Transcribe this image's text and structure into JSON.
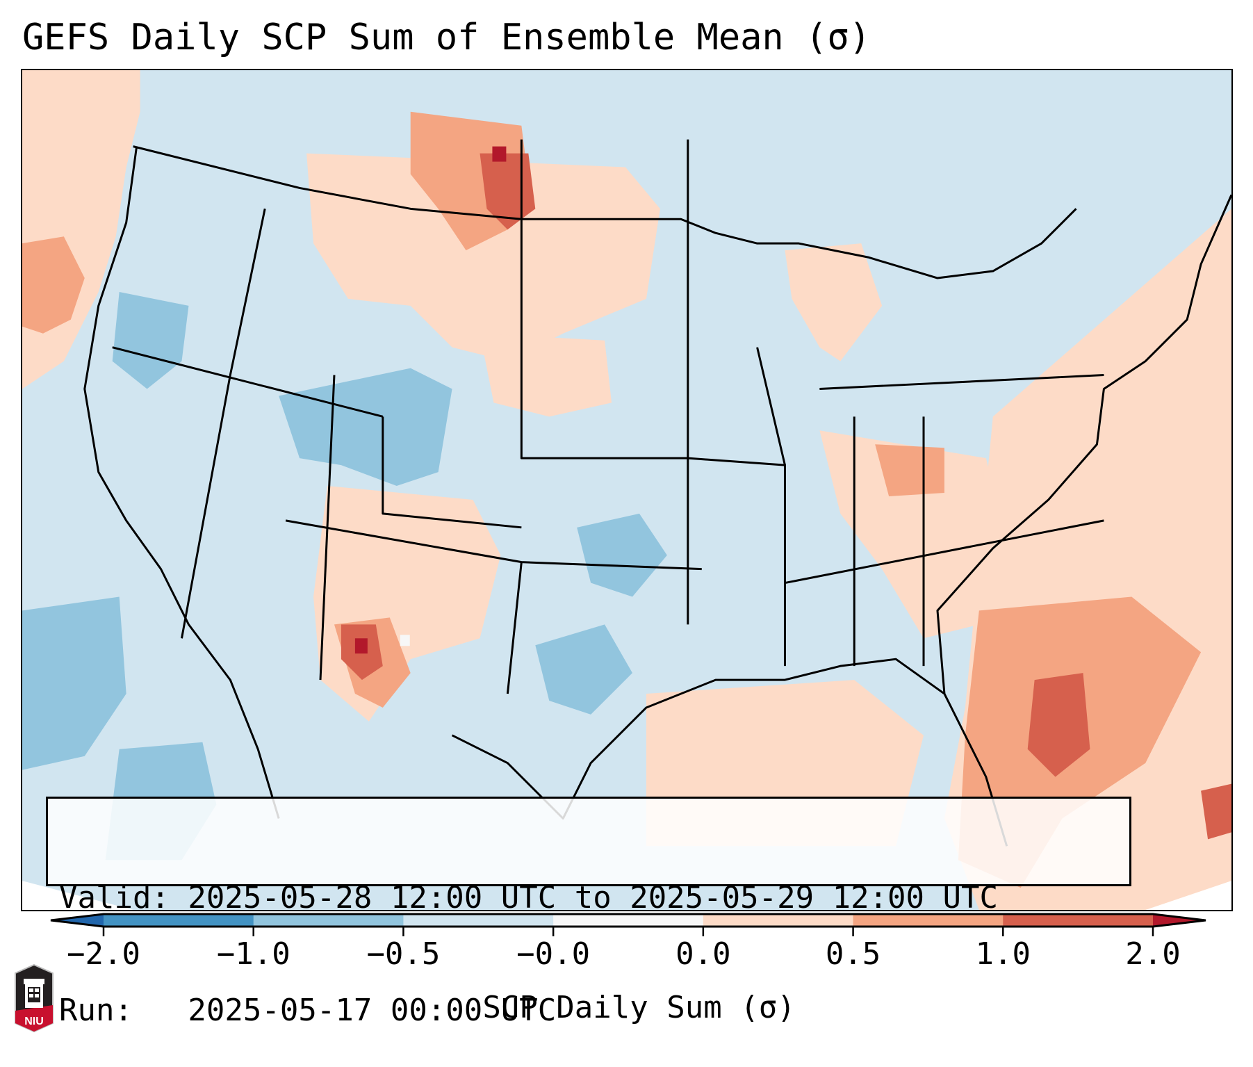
{
  "title": "GEFS Daily SCP Sum of Ensemble Mean (σ)",
  "info": {
    "valid_line": "Valid: 2025-05-28 12:00 UTC to 2025-05-29 12:00 UTC",
    "run_line": "Run:   2025-05-17 00:00 UTC"
  },
  "colorbar": {
    "label": "SCP Daily Sum (σ)",
    "ticks": [
      "−2.0",
      "−1.0",
      "−0.5",
      "−0.0",
      "0.0",
      "0.5",
      "1.0",
      "2.0"
    ],
    "bins": [
      {
        "range": "< -2.0",
        "color": "#2166ac",
        "kind": "extend-low"
      },
      {
        "range": "-2.0 to -1.0",
        "color": "#4393c3"
      },
      {
        "range": "-1.0 to -0.5",
        "color": "#92c5de"
      },
      {
        "range": "-0.5 to -0.0",
        "color": "#d1e5f0"
      },
      {
        "range": "-0.0 to 0.0",
        "color": "#f7f7f7"
      },
      {
        "range": "0.0 to 0.5",
        "color": "#fddbc7"
      },
      {
        "range": "0.5 to 1.0",
        "color": "#f4a582"
      },
      {
        "range": "1.0 to 2.0",
        "color": "#d6604d"
      },
      {
        "range": "> 2.0",
        "color": "#b2182b",
        "kind": "extend-high"
      }
    ]
  },
  "map": {
    "region": "Contiguous United States",
    "field": "SCP daily sum standardized anomaly",
    "highlights": [
      {
        "area": "Eastern Montana / western North Dakota",
        "category": "1.0 to >2.0"
      },
      {
        "area": "Southern New Mexico / Texas border",
        "category": "1.0 to >2.0"
      },
      {
        "area": "Florida and western Atlantic",
        "category": "0.5 to 2.0"
      },
      {
        "area": "Tennessee Valley / Kentucky",
        "category": "0.0 to 1.0"
      },
      {
        "area": "Colorado / Utah",
        "category": "-1.0 to -0.5"
      },
      {
        "area": "Oklahoma / central Texas",
        "category": "-1.0 to -0.5"
      },
      {
        "area": "Eastern Pacific",
        "category": "-1.0 to -0.5"
      }
    ]
  },
  "logo": {
    "text": "NIU"
  }
}
